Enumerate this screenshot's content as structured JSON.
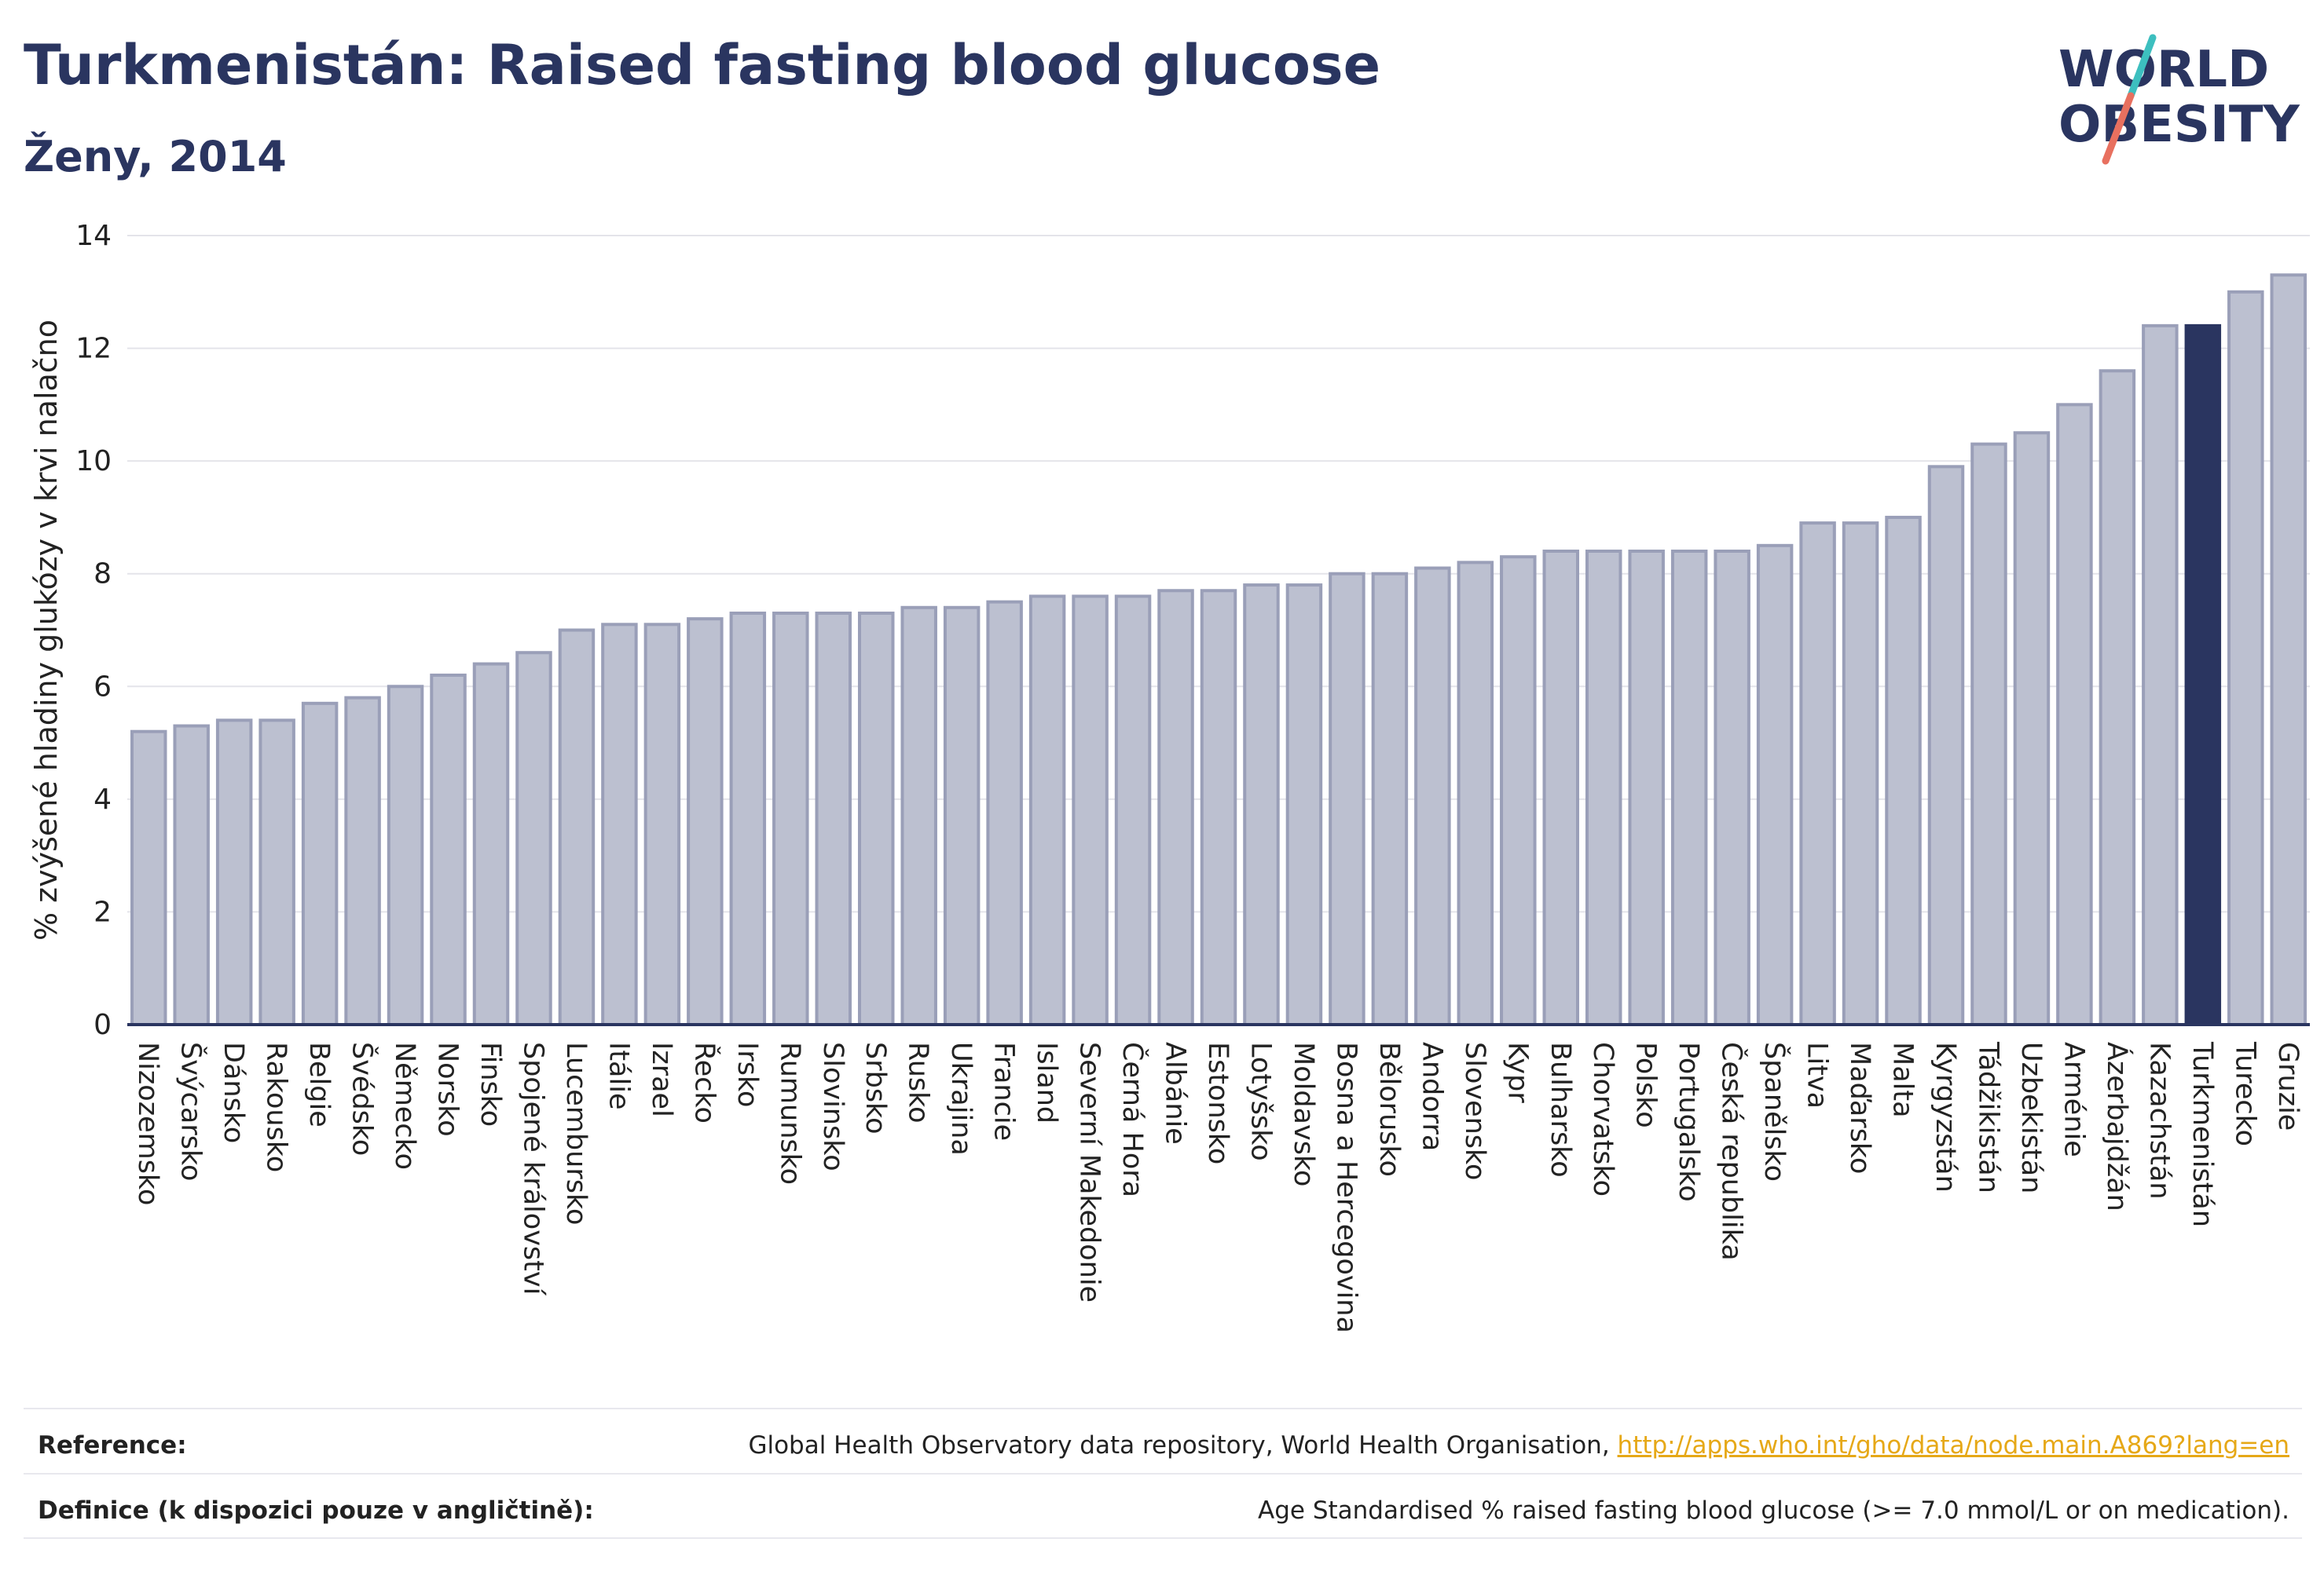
{
  "header": {
    "title": "Turkmenistán: Raised fasting blood glucose",
    "subtitle": "Ženy, 2014"
  },
  "logo": {
    "line1": "WORLD",
    "line2": "OBESITY",
    "accent_teal": "#3dbfbf",
    "accent_coral": "#e8705f",
    "text_color": "#2a3560"
  },
  "colors": {
    "bar_default": "#bcc0d0",
    "bar_border": "#9a9fb8",
    "bar_highlight": "#2a3560",
    "grid": "#e4e4ea",
    "axis": "#2a3560"
  },
  "chart_data": {
    "type": "bar",
    "ylabel": "% zvýšené hladiny glukózy v krvi nalačno",
    "ylim": [
      0,
      14
    ],
    "yticks": [
      0,
      2,
      4,
      6,
      8,
      10,
      12,
      14
    ],
    "grid": true,
    "highlight": "Turkmenistán",
    "categories": [
      "Nizozemsko",
      "Švýcarsko",
      "Dánsko",
      "Rakousko",
      "Belgie",
      "Švédsko",
      "Německo",
      "Norsko",
      "Finsko",
      "Spojené království",
      "Lucembursko",
      "Itálie",
      "Izrael",
      "Řecko",
      "Irsko",
      "Rumunsko",
      "Slovinsko",
      "Srbsko",
      "Rusko",
      "Ukrajina",
      "Francie",
      "Island",
      "Severní Makedonie",
      "Černá Hora",
      "Albánie",
      "Estonsko",
      "Lotyšsko",
      "Moldavsko",
      "Bosna a Hercegovina",
      "Bělorusko",
      "Andorra",
      "Slovensko",
      "Kypr",
      "Bulharsko",
      "Chorvatsko",
      "Polsko",
      "Portugalsko",
      "Česká republika",
      "Španělsko",
      "Litva",
      "Maďarsko",
      "Malta",
      "Kyrgyzstán",
      "Tádžikistán",
      "Uzbekistán",
      "Arménie",
      "Ázerbajdžán",
      "Kazachstán",
      "Turkmenistán",
      "Turecko",
      "Gruzie"
    ],
    "values": [
      5.2,
      5.3,
      5.4,
      5.4,
      5.7,
      5.8,
      6.0,
      6.2,
      6.4,
      6.6,
      7.0,
      7.1,
      7.1,
      7.2,
      7.3,
      7.3,
      7.3,
      7.3,
      7.4,
      7.4,
      7.5,
      7.6,
      7.6,
      7.6,
      7.7,
      7.7,
      7.8,
      7.8,
      8.0,
      8.0,
      8.1,
      8.2,
      8.3,
      8.4,
      8.4,
      8.4,
      8.4,
      8.4,
      8.5,
      8.9,
      8.9,
      9.0,
      9.9,
      10.3,
      10.5,
      11.0,
      11.6,
      12.4,
      12.4,
      13.0,
      13.3
    ]
  },
  "footer": {
    "reference_label": "Reference:",
    "reference_text": "Global Health Observatory data repository, World Health Organisation, ",
    "reference_link": "http://apps.who.int/gho/data/node.main.A869?lang=en",
    "definition_label": "Definice (k dispozici pouze v angličtině):",
    "definition_text": "Age Standardised % raised fasting blood glucose (>= 7.0 mmol/L or on medication)."
  }
}
